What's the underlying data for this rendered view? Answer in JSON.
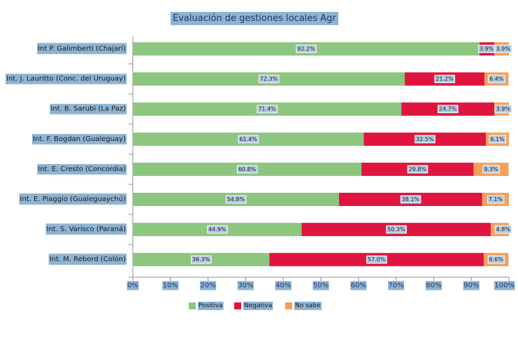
{
  "title": "Evaluación de gestiones locales Agr",
  "chart_data": {
    "type": "bar",
    "orientation": "horizontal",
    "stacked": true,
    "normalized": true,
    "categories": [
      "Int P. Galimberti (Chajarí)",
      "Int. J. Lauritto (Conc. del Uruguay)",
      "Int. B. Sarubi (La Paz)",
      "Int. F. Bogdan (Gualeguay)",
      "Int. E. Cresto (Concordia)",
      "Int. E. Piaggio (Gualeguaychú)",
      "Int. S. Varisco (Paraná)",
      "Int. M. Rebord (Colón)"
    ],
    "series": [
      {
        "name": "Positiva",
        "color": "#8cc67f",
        "values": [
          92.2,
          72.3,
          71.4,
          61.4,
          60.8,
          54.8,
          44.9,
          36.3
        ],
        "labels": [
          "92.2%",
          "72.3%",
          "71.4%",
          "61.4%",
          "60.8%",
          "54.8%",
          "44.9%",
          "36.3%"
        ]
      },
      {
        "name": "Negativa",
        "color": "#e0153f",
        "values": [
          3.9,
          21.2,
          24.7,
          32.5,
          29.8,
          38.1,
          50.3,
          57.0
        ],
        "labels": [
          "3.9%",
          "21.2%",
          "24.7%",
          "32.5%",
          "29.8%",
          "38.1%",
          "50.3%",
          "57.0%"
        ]
      },
      {
        "name": "No sabe",
        "color": "#f5a05a",
        "values": [
          3.9,
          6.4,
          3.9,
          6.1,
          9.3,
          7.1,
          4.8,
          6.6
        ],
        "labels": [
          "3.9%",
          "6.4%",
          "3.9%",
          "6.1%",
          "9.3%",
          "7.1%",
          "4.8%",
          "6.6%"
        ]
      }
    ],
    "xlim": [
      0,
      100
    ],
    "xticks": [
      "0%",
      "10%",
      "20%",
      "30%",
      "40%",
      "50%",
      "60%",
      "70%",
      "80%",
      "90%",
      "100%"
    ],
    "grid": false,
    "legend_position": "bottom"
  }
}
